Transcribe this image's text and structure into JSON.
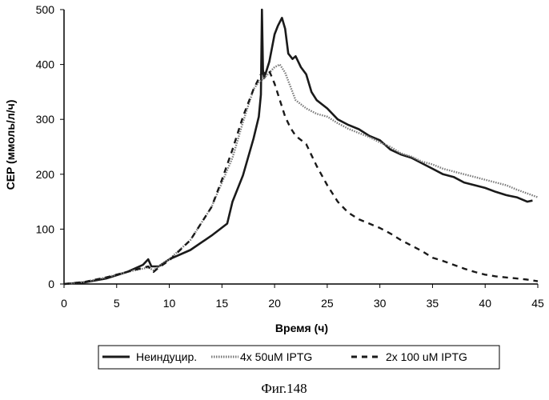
{
  "chart_data": {
    "type": "line",
    "xlabel": "Время (ч)",
    "ylabel": "CEP (ммоль/л/ч)",
    "xlim": [
      0,
      45
    ],
    "ylim": [
      0,
      500
    ],
    "xticks": [
      0,
      5,
      10,
      15,
      20,
      25,
      30,
      35,
      40,
      45
    ],
    "yticks": [
      0,
      100,
      200,
      300,
      400,
      500
    ],
    "grid": false,
    "legend_position": "bottom",
    "series": [
      {
        "name": "Неиндуцир.",
        "style": "solid",
        "color": "#1a1a1a",
        "x": [
          0,
          2,
          4,
          6,
          7.5,
          8,
          8.3,
          9,
          10,
          12,
          14,
          15.5,
          16,
          17,
          18,
          18.5,
          18.7,
          18.8,
          18.9,
          19,
          19.5,
          20,
          20.3,
          20.7,
          21,
          21.3,
          21.7,
          22,
          22.5,
          23,
          23.5,
          24,
          25,
          26,
          27,
          28,
          29,
          30,
          31,
          32,
          33,
          34,
          35,
          36,
          37,
          38,
          39,
          40,
          41,
          42,
          43,
          44,
          44.5
        ],
        "y": [
          0,
          3,
          10,
          22,
          35,
          45,
          32,
          32,
          45,
          62,
          88,
          110,
          150,
          198,
          265,
          305,
          345,
          500,
          390,
          375,
          405,
          455,
          470,
          485,
          465,
          420,
          410,
          415,
          395,
          382,
          350,
          335,
          320,
          300,
          290,
          282,
          270,
          262,
          245,
          236,
          230,
          220,
          210,
          200,
          195,
          185,
          180,
          175,
          168,
          162,
          158,
          150,
          152
        ]
      },
      {
        "name": "4x 50uM IPTG",
        "style": "dotted",
        "color": "#7a7a7a",
        "x": [
          0,
          2,
          4,
          6,
          8,
          8.5,
          9,
          10,
          12,
          14,
          15,
          16,
          17,
          18,
          18.5,
          19,
          19.5,
          20,
          20.5,
          21,
          22,
          23,
          24,
          25,
          26,
          27,
          28,
          29,
          30,
          31,
          32,
          33,
          34,
          35,
          36,
          37,
          38,
          39,
          40,
          41,
          42,
          43,
          44,
          45
        ],
        "y": [
          0,
          4,
          12,
          22,
          30,
          25,
          32,
          45,
          80,
          140,
          185,
          230,
          295,
          355,
          368,
          375,
          385,
          395,
          400,
          385,
          335,
          320,
          310,
          305,
          293,
          283,
          275,
          268,
          258,
          250,
          238,
          232,
          223,
          218,
          210,
          205,
          200,
          195,
          190,
          185,
          180,
          172,
          165,
          158
        ]
      },
      {
        "name": "2x 100 uM IPTG",
        "style": "dashed",
        "color": "#1a1a1a",
        "x": [
          0,
          2,
          4,
          6,
          8,
          8.5,
          9,
          10,
          12,
          14,
          15,
          16,
          17,
          18,
          18.7,
          19.5,
          20,
          20.5,
          21,
          21.5,
          22,
          23,
          24,
          25,
          26,
          27,
          28,
          29,
          30,
          31,
          32,
          33,
          34,
          35,
          36,
          37,
          38,
          39,
          40,
          41,
          42,
          43,
          44,
          45
        ],
        "y": [
          0,
          4,
          12,
          22,
          32,
          22,
          30,
          43,
          80,
          140,
          190,
          245,
          305,
          355,
          382,
          388,
          365,
          335,
          305,
          285,
          270,
          255,
          215,
          180,
          150,
          130,
          118,
          110,
          102,
          92,
          80,
          70,
          60,
          48,
          42,
          35,
          28,
          22,
          17,
          14,
          12,
          10,
          8,
          5
        ]
      }
    ],
    "caption": "Фиг.148"
  }
}
